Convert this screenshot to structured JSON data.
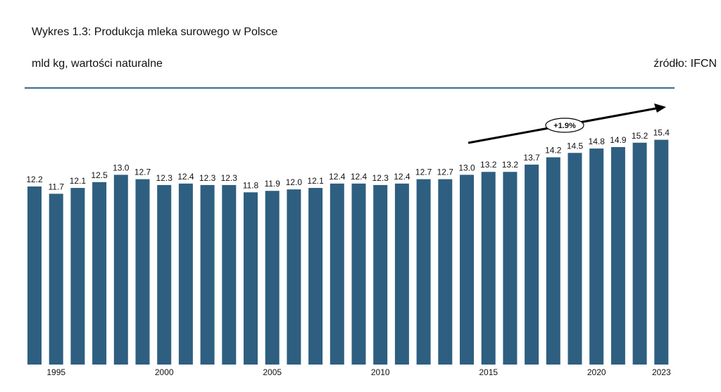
{
  "chart_data": {
    "type": "bar",
    "title": "Wykres 1.3: Produkcja mleka surowego w Polsce",
    "subtitle": "mld kg, wartości naturalne",
    "source": "źródło: IFCN",
    "xlabel": "",
    "ylabel": "",
    "ylim": [
      0,
      16
    ],
    "grid": false,
    "categories": [
      1994,
      1995,
      1996,
      1997,
      1998,
      1999,
      2000,
      2001,
      2002,
      2003,
      2004,
      2005,
      2006,
      2007,
      2008,
      2009,
      2010,
      2011,
      2012,
      2013,
      2014,
      2015,
      2016,
      2017,
      2018,
      2019,
      2020,
      2021,
      2022,
      2023
    ],
    "values": [
      12.2,
      11.7,
      12.1,
      12.5,
      13.0,
      12.7,
      12.3,
      12.4,
      12.3,
      12.3,
      11.8,
      11.9,
      12.0,
      12.1,
      12.4,
      12.4,
      12.3,
      12.4,
      12.7,
      12.7,
      13.0,
      13.2,
      13.2,
      13.7,
      14.2,
      14.5,
      14.8,
      14.9,
      15.2,
      15.4
    ],
    "x_tick_labels": [
      "1995",
      "2000",
      "2005",
      "2010",
      "2015",
      "2020",
      "2023"
    ],
    "annotation": {
      "label": "+1.9%",
      "from_year": 2014,
      "to_year": 2023
    },
    "bar_color": "#2e5f80",
    "rule_color": "#3d6a8e"
  }
}
